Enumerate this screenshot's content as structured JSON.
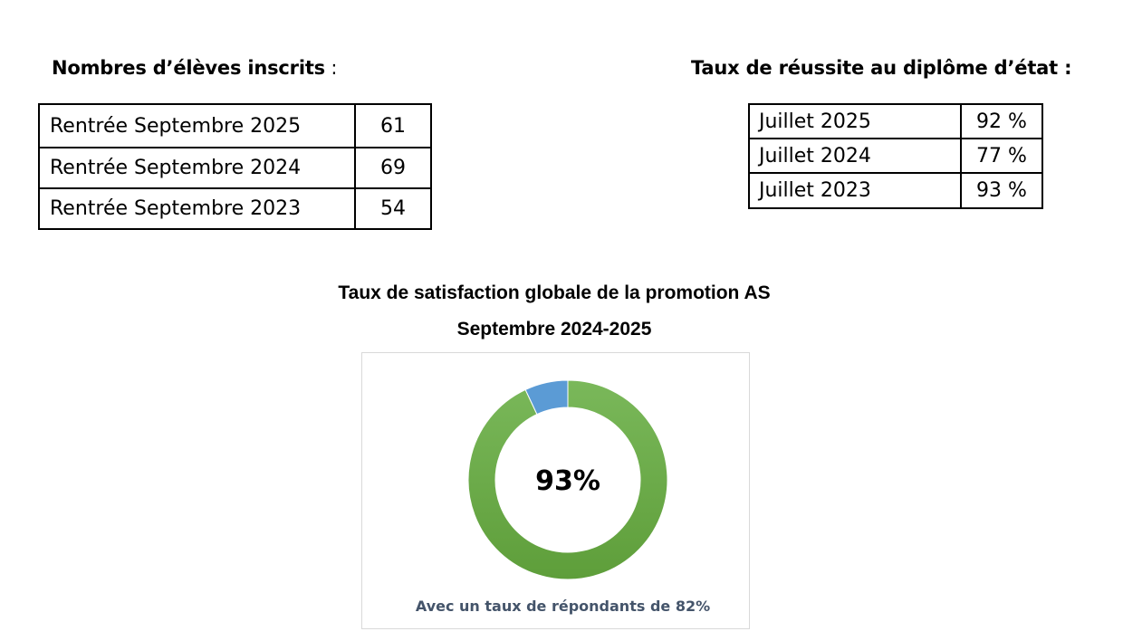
{
  "enrollment": {
    "heading": "Nombres d’élèves  inscrits",
    "heading_suffix": " :",
    "rows": [
      {
        "label": "Rentrée Septembre 2025",
        "value": "61"
      },
      {
        "label": "Rentrée Septembre 2024",
        "value": "69"
      },
      {
        "label": "Rentrée Septembre 2023",
        "value": "54"
      }
    ]
  },
  "success": {
    "heading": "Taux de réussite au diplôme d’état :",
    "rows": [
      {
        "label": "Juillet 2025",
        "value": "92 %"
      },
      {
        "label": "Juillet 2024",
        "value": "77 %"
      },
      {
        "label": "Juillet 2023",
        "value": "93 %"
      }
    ]
  },
  "chart_data": {
    "type": "pie",
    "title": "Taux de satisfaction globale de la promotion AS",
    "subtitle": "Septembre 2024-2025",
    "slices": [
      {
        "value": 93,
        "color": "#6aab47"
      },
      {
        "value": 7,
        "color": "#5b9bd5"
      }
    ],
    "center_label": "93%",
    "annotation": "Avec un taux de répondants de 82%"
  }
}
